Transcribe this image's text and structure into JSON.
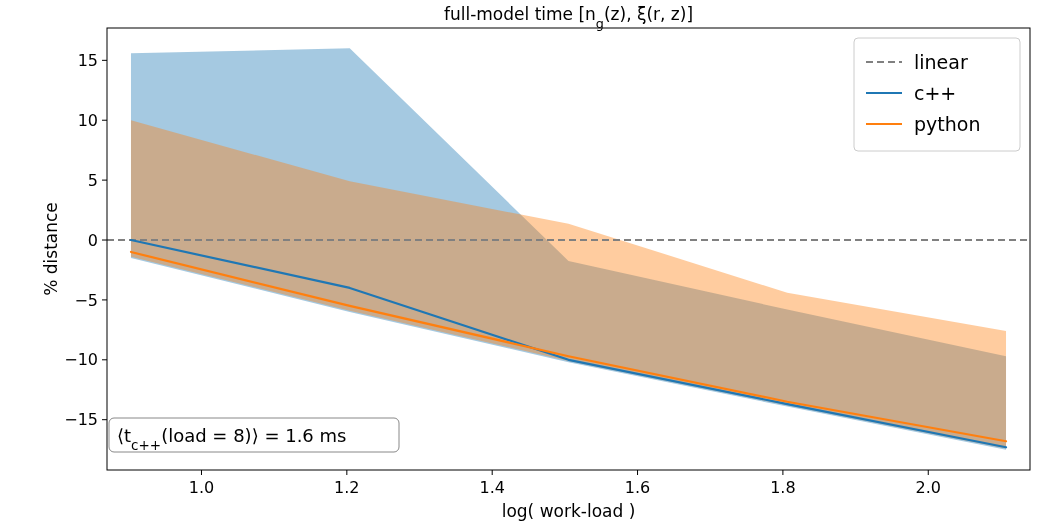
{
  "chart_data": {
    "type": "line",
    "title": "full-model time [n$_{g}$(z), ξ(r, z)]",
    "xlabel": "log( work-load )",
    "ylabel": "% distance",
    "x": [
      0.903,
      1.204,
      1.505,
      1.806,
      2.107
    ],
    "series": [
      {
        "name": "c++",
        "color": "#1f77b4",
        "values": [
          0,
          -4.0,
          -10.0,
          -13.7,
          -17.3
        ],
        "lower": [
          -1.5,
          -6.0,
          -10.2,
          -13.9,
          -17.5
        ],
        "upper": [
          15.6,
          16.0,
          -1.75,
          -5.8,
          -9.7
        ]
      },
      {
        "name": "python",
        "color": "#ff7f0e",
        "values": [
          -1.0,
          -5.5,
          -9.7,
          -13.5,
          -16.8
        ],
        "lower": [
          -1.4,
          -5.9,
          -10.1,
          -13.8,
          -17.4
        ],
        "upper": [
          10.0,
          4.9,
          1.36,
          -4.4,
          -7.6
        ]
      }
    ],
    "ref_lines": [
      {
        "axis": "y",
        "value": 0,
        "label": "linear",
        "color": "#808080",
        "line_style": "dashed"
      }
    ],
    "annotations": [
      "⟨t$_{c++}$(load = 8)⟩ = 1.6 ms"
    ],
    "xlim": [
      0.87,
      2.14
    ],
    "xticks": [
      {
        "value": 1.0,
        "label": "1.0"
      },
      {
        "value": 1.2,
        "label": "1.2"
      },
      {
        "value": 1.4,
        "label": "1.4"
      },
      {
        "value": 1.6,
        "label": "1.6"
      },
      {
        "value": 1.8,
        "label": "1.8"
      },
      {
        "value": 2.0,
        "label": "2.0"
      }
    ],
    "ylim": [
      -19.2,
      17.7
    ],
    "yticks": [
      -15,
      -10,
      -5,
      0,
      5,
      10,
      15
    ],
    "grid": false,
    "legend": "top right",
    "marker": "none",
    "line_style": "solid"
  }
}
